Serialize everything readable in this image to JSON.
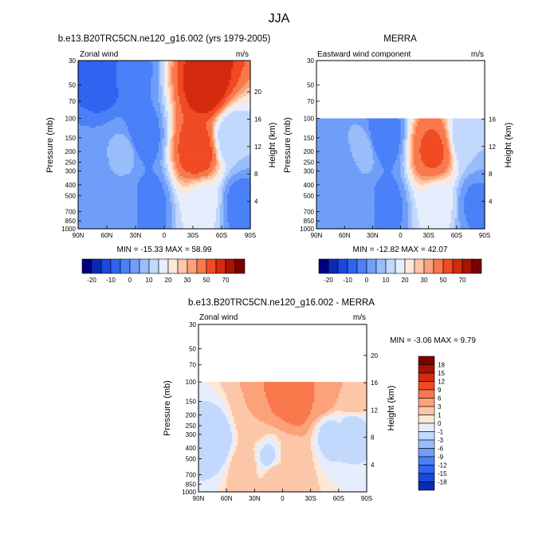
{
  "figure_title": "JJA",
  "chart_data": [
    {
      "type": "heatmap",
      "panel": "top-left",
      "title": "b.e13.B20TRC5CN.ne120_g16.002 (yrs 1979-2005)",
      "left_string": "Zonal wind",
      "right_string": "m/s",
      "xlabel": "",
      "ylabel": "Pressure (mb)",
      "ylabel_right": "Height (km)",
      "x_ticks": [
        "90N",
        "60N",
        "30N",
        "0",
        "30S",
        "60S",
        "90S"
      ],
      "y_ticks": [
        30,
        50,
        70,
        100,
        150,
        200,
        250,
        300,
        400,
        500,
        700,
        850,
        1000
      ],
      "y_right_ticks": [
        20,
        16,
        12,
        8,
        4
      ],
      "x_range": [
        90,
        -90
      ],
      "y_range": [
        1000,
        30
      ],
      "y_scale": "log",
      "data_top_mb": 30,
      "min_max_label": "MIN = -15.33  MAX =  58.99",
      "min": -15.33,
      "max": 58.99,
      "colorbar": "horizontal-bottom",
      "features": [
        {
          "lat": 62,
          "p": 40,
          "value": -15
        },
        {
          "lat": 40,
          "p": 40,
          "value": -8
        },
        {
          "lat": 25,
          "p": 150,
          "value": -10
        },
        {
          "lat": 18,
          "p": 600,
          "value": -9
        },
        {
          "lat": 40,
          "p": 200,
          "value": 2
        },
        {
          "lat": 40,
          "p": 600,
          "value": -1
        },
        {
          "lat": -35,
          "p": 200,
          "value": 48
        },
        {
          "lat": -45,
          "p": 50,
          "value": 58
        },
        {
          "lat": -40,
          "p": 600,
          "value": 12
        },
        {
          "lat": -70,
          "p": 150,
          "value": 5
        },
        {
          "lat": -80,
          "p": 600,
          "value": -8
        },
        {
          "lat": 85,
          "p": 300,
          "value": -3
        }
      ]
    },
    {
      "type": "heatmap",
      "panel": "top-right",
      "title": "MERRA",
      "left_string": "Eastward wind component",
      "right_string": "m/s",
      "xlabel": "",
      "ylabel": "Pressure (mb)",
      "ylabel_right": "Height (km)",
      "x_ticks": [
        "90N",
        "60N",
        "30N",
        "0",
        "30S",
        "60S",
        "90S"
      ],
      "y_ticks": [
        30,
        50,
        70,
        100,
        150,
        200,
        250,
        300,
        400,
        500,
        700,
        850,
        1000
      ],
      "y_right_ticks": [
        16,
        12,
        8,
        4
      ],
      "x_range": [
        90,
        -90
      ],
      "y_range": [
        1000,
        30
      ],
      "y_scale": "log",
      "data_top_mb": 100,
      "min_max_label": "MIN = -12.82  MAX =  42.07",
      "min": -12.82,
      "max": 42.07,
      "colorbar": "horizontal-bottom",
      "features": [
        {
          "lat": 40,
          "p": 200,
          "value": 3
        },
        {
          "lat": 40,
          "p": 600,
          "value": -1
        },
        {
          "lat": 20,
          "p": 150,
          "value": -10
        },
        {
          "lat": 18,
          "p": 600,
          "value": -8
        },
        {
          "lat": 60,
          "p": 300,
          "value": -5
        },
        {
          "lat": -35,
          "p": 200,
          "value": 42
        },
        {
          "lat": -40,
          "p": 600,
          "value": 12
        },
        {
          "lat": -70,
          "p": 150,
          "value": 5
        },
        {
          "lat": -80,
          "p": 600,
          "value": -6
        },
        {
          "lat": 85,
          "p": 300,
          "value": -4
        }
      ]
    },
    {
      "type": "heatmap",
      "panel": "bottom",
      "title": "b.e13.B20TRC5CN.ne120_g16.002 - MERRA",
      "left_string": "Zonal wind",
      "right_string": "m/s",
      "xlabel": "",
      "ylabel": "Pressure (mb)",
      "ylabel_right": "Height (km)",
      "x_ticks": [
        "90N",
        "60N",
        "30N",
        "0",
        "30S",
        "60S",
        "90S"
      ],
      "y_ticks": [
        30,
        50,
        70,
        100,
        150,
        200,
        250,
        300,
        400,
        500,
        700,
        850,
        1000
      ],
      "y_right_ticks": [
        20,
        16,
        12,
        8,
        4
      ],
      "x_range": [
        90,
        -90
      ],
      "y_range": [
        1000,
        30
      ],
      "y_scale": "log",
      "data_top_mb": 100,
      "min_max_label": "MIN =  -3.06  MAX =   9.79",
      "min": -3.06,
      "max": 9.79,
      "colorbar": "vertical-right",
      "features": [
        {
          "lat": 5,
          "p": 130,
          "value": 7
        },
        {
          "lat": -15,
          "p": 150,
          "value": 8
        },
        {
          "lat": -40,
          "p": 130,
          "value": 6
        },
        {
          "lat": 30,
          "p": 200,
          "value": 3
        },
        {
          "lat": 40,
          "p": 600,
          "value": 2
        },
        {
          "lat": 10,
          "p": 700,
          "value": 2
        },
        {
          "lat": 70,
          "p": 350,
          "value": -2
        },
        {
          "lat": 15,
          "p": 500,
          "value": -1.5
        },
        {
          "lat": -10,
          "p": 500,
          "value": 2
        },
        {
          "lat": -50,
          "p": 300,
          "value": -1.5
        },
        {
          "lat": -75,
          "p": 250,
          "value": -2
        },
        {
          "lat": -75,
          "p": 150,
          "value": 3
        }
      ]
    }
  ],
  "colorbar_top": {
    "labels": [
      "-20",
      "-10",
      "0",
      "10",
      "20",
      "30",
      "50",
      "70"
    ],
    "levels": [
      -25,
      -20,
      -15,
      -10,
      -5,
      0,
      5,
      10,
      15,
      20,
      25,
      30,
      40,
      50,
      60,
      70
    ]
  },
  "colorbar_bottom": {
    "labels": [
      "18",
      "15",
      "12",
      "9",
      "6",
      "3",
      "1",
      "0",
      "-1",
      "-3",
      "-6",
      "-9",
      "-12",
      "-15",
      "-18"
    ],
    "levels": [
      -18,
      -15,
      -12,
      -9,
      -6,
      -3,
      -1,
      0,
      1,
      3,
      6,
      9,
      12,
      15,
      18
    ]
  },
  "colors": {
    "palette": [
      "#00007f",
      "#0a2ab4",
      "#1a48dc",
      "#2f64f0",
      "#4a80f8",
      "#6f9ef9",
      "#99bdfa",
      "#c2d8fc",
      "#e6eefd",
      "#fde7d7",
      "#fcc6a9",
      "#fba27a",
      "#f9794d",
      "#f04b24",
      "#d42a0e",
      "#a81203",
      "#7a0000"
    ],
    "top_bar": [
      "#00007f",
      "#0a2ab4",
      "#1a48dc",
      "#2f64f0",
      "#4a80f8",
      "#6f9ef9",
      "#99bdfa",
      "#c2d8fc",
      "#e6eefd",
      "#fde7d7",
      "#fcc6a9",
      "#fba27a",
      "#f9794d",
      "#f04b24",
      "#d42a0e",
      "#a81203",
      "#7a0000"
    ],
    "bottom_bar": [
      "#7a0000",
      "#a81203",
      "#d42a0e",
      "#f04b24",
      "#f9794d",
      "#fba27a",
      "#fcc6a9",
      "#fde7d7",
      "#e6eefd",
      "#c2d8fc",
      "#99bdfa",
      "#6f9ef9",
      "#4a80f8",
      "#2f64f0",
      "#1a48dc",
      "#0a2ab4"
    ]
  }
}
